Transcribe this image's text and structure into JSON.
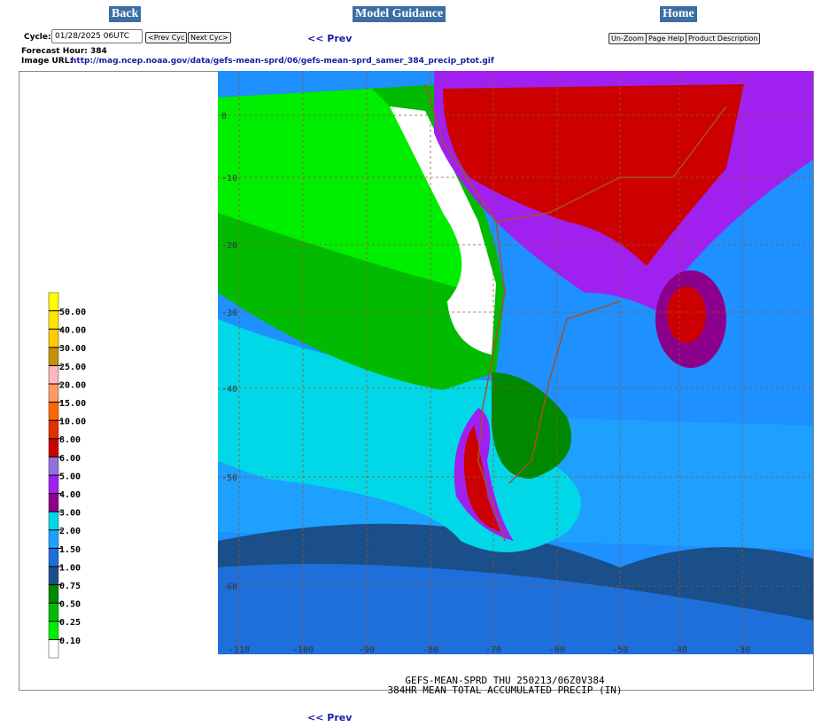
{
  "nav": {
    "back": "Back",
    "title": "Model Guidance",
    "home": "Home"
  },
  "controls": {
    "cycle_label": "Cycle:",
    "cycle_value": "01/28/2025 06UTC",
    "prev_cyc": "<Prev Cyc",
    "next_cyc": "Next Cyc>",
    "prev": "<< Prev",
    "unzoom": "Un-Zoom",
    "page_help": "Page Help",
    "product_description": "Product Description"
  },
  "info": {
    "forecast_hour": "Forecast Hour: 384",
    "image_url_label": "Image URL:",
    "image_url": "http://mag.ncep.noaa.gov/data/gefs-mean-sprd/06/gefs-mean-sprd_samer_384_precip_ptot.gif"
  },
  "legend": {
    "labels": [
      "50.00",
      "40.00",
      "30.00",
      "25.00",
      "20.00",
      "15.00",
      "10.00",
      "8.00",
      "6.00",
      "5.00",
      "4.00",
      "3.00",
      "2.00",
      "1.50",
      "1.00",
      "0.75",
      "0.50",
      "0.25",
      "0.10"
    ],
    "colors": [
      "#ffff00",
      "#ffe600",
      "#ffcc00",
      "#c8900a",
      "#ffb6c1",
      "#ff9966",
      "#ff6600",
      "#e03000",
      "#cc0000",
      "#9370db",
      "#a020f0",
      "#8b008b",
      "#00d8e8",
      "#1ea0ff",
      "#1e6fd9",
      "#1a4f8a",
      "#008800",
      "#00bb00",
      "#00ee00",
      "#ffffff"
    ]
  },
  "map": {
    "lat_labels": [
      "0",
      "-10",
      "-20",
      "-30",
      "-40",
      "-50",
      "-60"
    ],
    "lon_labels": [
      "-110",
      "-100",
      "-90",
      "-80",
      "-70",
      "-60",
      "-50",
      "-40",
      "-30"
    ],
    "caption": [
      "GEFS-MEAN-SPRD THU 250213/06Z0V384",
      "384HR MEAN TOTAL ACCUMULATED PRECIP (IN)"
    ]
  },
  "footer": {
    "prev": "<< Prev"
  }
}
